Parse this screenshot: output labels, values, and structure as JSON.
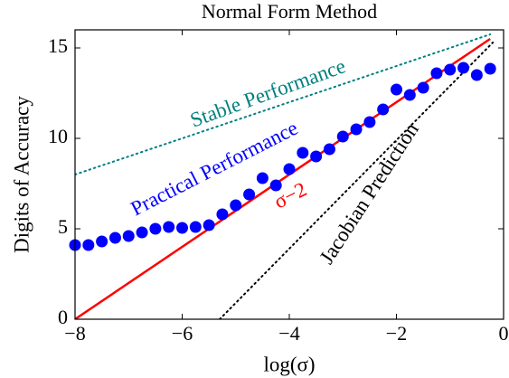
{
  "chart_data": {
    "type": "line",
    "title": "Normal Form Method",
    "x_label": "log(σ)",
    "y_label": "Digits of Accuracy",
    "xlim": [
      -8,
      0
    ],
    "ylim": [
      0,
      16
    ],
    "xticks": [
      {
        "value": -8,
        "label": "−8"
      },
      {
        "value": -6,
        "label": "−6"
      },
      {
        "value": -4,
        "label": "−4"
      },
      {
        "value": -2,
        "label": "−2"
      },
      0
    ],
    "yticks": [
      0,
      5,
      10,
      15
    ],
    "series": [
      {
        "name": "Stable Performance",
        "color": "#008080",
        "style": "dotted",
        "x": [
          -8,
          -0.25
        ],
        "values": [
          8,
          15.75
        ]
      },
      {
        "name": "σ−2",
        "color": "#ff0000",
        "style": "solid",
        "x": [
          -8,
          -0.25
        ],
        "values": [
          0,
          15.5
        ]
      },
      {
        "name": "Jacobian Prediction",
        "color": "#000000",
        "style": "dotted",
        "x": [
          -5.3,
          -0.2
        ],
        "values": [
          0,
          15.3
        ]
      },
      {
        "name": "Practical Performance",
        "color": "#0000ff",
        "style": "markers",
        "x": [
          -8,
          -7.75,
          -7.5,
          -7.25,
          -7,
          -6.75,
          -6.5,
          -6.25,
          -6,
          -5.75,
          -5.5,
          -5.25,
          -5,
          -4.75,
          -4.5,
          -4.25,
          -4,
          -3.75,
          -3.5,
          -3.25,
          -3,
          -2.75,
          -2.5,
          -2.25,
          -2,
          -1.75,
          -1.5,
          -1.25,
          -1,
          -0.75,
          -0.5,
          -0.25
        ],
        "values": [
          4.1,
          4.1,
          4.3,
          4.5,
          4.6,
          4.8,
          5.0,
          5.1,
          5.05,
          5.1,
          5.2,
          5.8,
          6.3,
          6.9,
          7.8,
          7.4,
          8.3,
          9.2,
          9.0,
          9.4,
          10.1,
          10.5,
          10.9,
          11.6,
          12.7,
          12.4,
          12.8,
          13.6,
          13.8,
          13.9,
          13.5,
          13.85
        ]
      }
    ]
  }
}
